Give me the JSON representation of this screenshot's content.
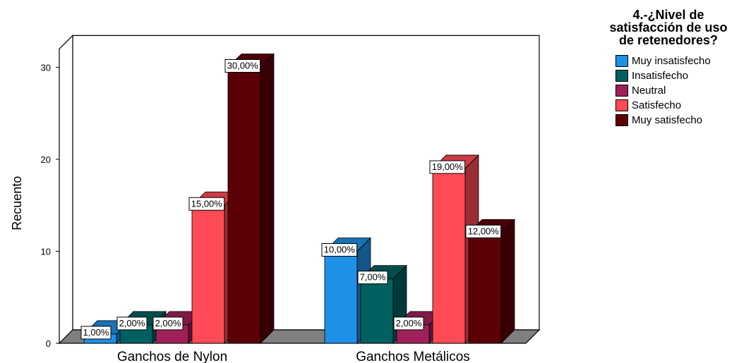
{
  "chart_data": {
    "type": "bar",
    "ylabel": "Recuento",
    "xlabel": "",
    "ylim": [
      0,
      32
    ],
    "yticks": [
      0,
      10,
      20,
      30
    ],
    "categories": [
      "Ganchos de Nylon",
      "Ganchos Metálicos"
    ],
    "legend": {
      "title": "4.-¿Nivel de satisfacción de uso de retenedores?",
      "placement": "right"
    },
    "series": [
      {
        "name": "Muy insatisfecho",
        "color": "#1e90e6",
        "values": [
          1,
          10
        ],
        "labels": [
          "1,00%",
          "10,00%"
        ]
      },
      {
        "name": "Insatisfecho",
        "color": "#006060",
        "values": [
          2,
          7
        ],
        "labels": [
          "2,00%",
          "7,00%"
        ]
      },
      {
        "name": "Neutral",
        "color": "#a0205a",
        "values": [
          2,
          2
        ],
        "labels": [
          "2,00%",
          "2,00%"
        ]
      },
      {
        "name": "Satisfecho",
        "color": "#ff4b55",
        "values": [
          15,
          19
        ],
        "labels": [
          "15,00%",
          "19,00%"
        ]
      },
      {
        "name": "Muy satisfecho",
        "color": "#5c0008",
        "values": [
          30,
          12
        ],
        "labels": [
          "30,00%",
          "12,00%"
        ]
      }
    ]
  }
}
